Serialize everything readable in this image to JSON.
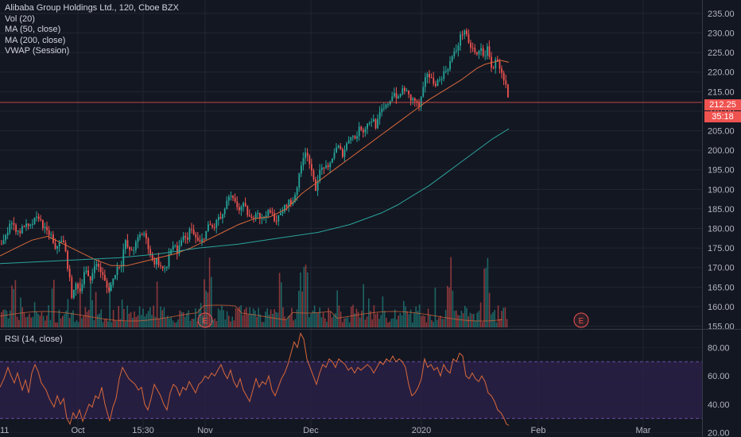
{
  "header": {
    "title": "Alibaba Group Holdings Ltd., 120, Cboe BZX",
    "indicators": [
      "Vol (20)",
      "MA (50, close)",
      "MA (200, close)",
      "VWAP (Session)"
    ]
  },
  "rsi_panel": {
    "label": "RSI (14, close)"
  },
  "price_tag": {
    "price": "212.25",
    "countdown": "35:18"
  },
  "earnings_marker": "E",
  "colors": {
    "background": "#131722",
    "grid": "#222631",
    "up": "#26a69a",
    "down": "#ef5350",
    "ma50": "#d9683a",
    "ma200": "#2aa39a",
    "rsi_line": "#d9683a",
    "rsi_band": "#2a2045",
    "rsi_band_border": "#7e57c2"
  },
  "chart_data": [
    {
      "type": "candlestick",
      "title": "Alibaba Group Holdings Ltd., 120, Cboe BZX",
      "x_ticks": [
        "11",
        "Oct",
        "15:30",
        "Nov",
        "Dec",
        "2020",
        "Feb",
        "Mar"
      ],
      "y_ticks": [
        155,
        160,
        165,
        170,
        175,
        180,
        185,
        190,
        195,
        200,
        205,
        210,
        215,
        220,
        225,
        230,
        235
      ],
      "ylim": [
        154.5,
        236
      ],
      "grid": true,
      "last_price": 212.25,
      "close_path": [
        [
          0,
          176
        ],
        [
          6,
          177.5
        ],
        [
          12,
          182
        ],
        [
          18,
          180
        ],
        [
          24,
          179
        ],
        [
          30,
          181
        ],
        [
          36,
          180
        ],
        [
          42,
          182
        ],
        [
          48,
          183
        ],
        [
          52,
          181
        ],
        [
          58,
          179
        ],
        [
          64,
          178
        ],
        [
          68,
          174
        ],
        [
          74,
          177
        ],
        [
          80,
          176
        ],
        [
          86,
          168
        ],
        [
          90,
          162
        ],
        [
          95,
          166
        ],
        [
          100,
          164
        ],
        [
          106,
          170
        ],
        [
          112,
          166
        ],
        [
          118,
          171
        ],
        [
          124,
          170
        ],
        [
          130,
          167
        ],
        [
          135,
          164
        ],
        [
          140,
          166
        ],
        [
          146,
          170
        ],
        [
          152,
          171
        ],
        [
          156,
          177
        ],
        [
          162,
          174
        ],
        [
          168,
          175
        ],
        [
          174,
          178
        ],
        [
          180,
          179
        ],
        [
          186,
          175
        ],
        [
          192,
          171
        ],
        [
          196,
          172
        ],
        [
          202,
          170
        ],
        [
          208,
          169
        ],
        [
          212,
          174
        ],
        [
          218,
          176
        ],
        [
          222,
          173
        ],
        [
          228,
          178
        ],
        [
          234,
          177
        ],
        [
          238,
          180
        ],
        [
          244,
          178
        ],
        [
          250,
          176
        ],
        [
          256,
          178
        ],
        [
          262,
          181
        ],
        [
          268,
          180
        ],
        [
          274,
          183
        ],
        [
          278,
          182
        ],
        [
          284,
          187
        ],
        [
          290,
          188
        ],
        [
          296,
          186
        ],
        [
          300,
          185
        ],
        [
          306,
          186
        ],
        [
          312,
          183
        ],
        [
          316,
          182
        ],
        [
          322,
          185
        ],
        [
          328,
          182
        ],
        [
          334,
          184
        ],
        [
          340,
          184
        ],
        [
          346,
          182
        ],
        [
          350,
          183
        ],
        [
          356,
          185
        ],
        [
          362,
          187
        ],
        [
          366,
          186
        ],
        [
          372,
          190
        ],
        [
          378,
          196
        ],
        [
          382,
          200
        ],
        [
          386,
          199
        ],
        [
          390,
          195
        ],
        [
          396,
          190
        ],
        [
          400,
          194
        ],
        [
          406,
          196
        ],
        [
          412,
          195
        ],
        [
          418,
          199
        ],
        [
          424,
          201
        ],
        [
          430,
          199
        ],
        [
          436,
          202
        ],
        [
          440,
          204
        ],
        [
          446,
          203
        ],
        [
          452,
          206
        ],
        [
          456,
          205
        ],
        [
          462,
          207
        ],
        [
          468,
          208
        ],
        [
          472,
          206
        ],
        [
          478,
          210
        ],
        [
          484,
          211
        ],
        [
          490,
          213
        ],
        [
          494,
          215
        ],
        [
          500,
          213
        ],
        [
          506,
          216
        ],
        [
          510,
          215
        ],
        [
          516,
          213
        ],
        [
          520,
          213
        ],
        [
          526,
          211
        ],
        [
          532,
          216
        ],
        [
          536,
          220
        ],
        [
          542,
          218
        ],
        [
          546,
          217
        ],
        [
          552,
          218
        ],
        [
          558,
          220
        ],
        [
          562,
          221
        ],
        [
          568,
          224
        ],
        [
          574,
          226
        ],
        [
          578,
          229
        ],
        [
          584,
          231
        ],
        [
          588,
          227
        ],
        [
          594,
          226
        ],
        [
          598,
          224
        ],
        [
          604,
          226
        ],
        [
          608,
          224
        ],
        [
          612,
          226
        ],
        [
          616,
          222
        ],
        [
          620,
          221
        ],
        [
          624,
          224
        ],
        [
          628,
          221
        ],
        [
          632,
          218
        ],
        [
          636,
          216
        ],
        [
          638,
          213
        ],
        [
          640,
          212.25
        ]
      ],
      "ma50_path": [
        [
          0,
          173
        ],
        [
          20,
          175
        ],
        [
          40,
          177
        ],
        [
          60,
          178
        ],
        [
          80,
          176
        ],
        [
          100,
          174
        ],
        [
          120,
          172
        ],
        [
          140,
          170.5
        ],
        [
          160,
          170.5
        ],
        [
          180,
          171.5
        ],
        [
          200,
          172.5
        ],
        [
          220,
          173.5
        ],
        [
          240,
          175
        ],
        [
          260,
          177
        ],
        [
          280,
          179
        ],
        [
          300,
          181
        ],
        [
          320,
          182.5
        ],
        [
          340,
          183
        ],
        [
          360,
          185
        ],
        [
          380,
          189
        ],
        [
          400,
          192
        ],
        [
          420,
          195
        ],
        [
          440,
          198
        ],
        [
          460,
          201
        ],
        [
          480,
          204
        ],
        [
          500,
          207
        ],
        [
          520,
          210
        ],
        [
          540,
          213
        ],
        [
          560,
          215.5
        ],
        [
          580,
          218
        ],
        [
          600,
          221
        ],
        [
          610,
          222
        ],
        [
          620,
          222.5
        ],
        [
          630,
          223
        ],
        [
          640,
          222.5
        ]
      ],
      "ma200_path": [
        [
          0,
          171
        ],
        [
          50,
          171.5
        ],
        [
          100,
          172
        ],
        [
          150,
          172.5
        ],
        [
          200,
          173.5
        ],
        [
          250,
          175
        ],
        [
          300,
          176
        ],
        [
          350,
          177.5
        ],
        [
          400,
          179
        ],
        [
          440,
          181
        ],
        [
          480,
          184
        ],
        [
          500,
          186
        ],
        [
          520,
          188.5
        ],
        [
          540,
          191
        ],
        [
          560,
          194
        ],
        [
          580,
          197
        ],
        [
          600,
          200
        ],
        [
          620,
          203
        ],
        [
          640,
          205.5
        ]
      ]
    },
    {
      "type": "bar",
      "title": "Vol (20)",
      "note": "volume histogram overlaid along the bottom of the price panel"
    },
    {
      "type": "line",
      "title": "RSI (14, close)",
      "y_ticks": [
        20,
        40,
        60,
        80
      ],
      "ylim": [
        18,
        92
      ],
      "band": [
        30,
        70
      ],
      "x_ticks": [
        "11",
        "Oct",
        "15:30",
        "Nov",
        "Dec",
        "2020",
        "Feb",
        "Mar"
      ],
      "rsi_path": [
        [
          0,
          52
        ],
        [
          5,
          58
        ],
        [
          10,
          66
        ],
        [
          14,
          60
        ],
        [
          18,
          55
        ],
        [
          22,
          62
        ],
        [
          28,
          50
        ],
        [
          32,
          57
        ],
        [
          36,
          48
        ],
        [
          40,
          62
        ],
        [
          44,
          68
        ],
        [
          48,
          63
        ],
        [
          52,
          55
        ],
        [
          58,
          50
        ],
        [
          62,
          44
        ],
        [
          68,
          38
        ],
        [
          72,
          46
        ],
        [
          76,
          40
        ],
        [
          80,
          44
        ],
        [
          84,
          30
        ],
        [
          88,
          26
        ],
        [
          92,
          34
        ],
        [
          96,
          30
        ],
        [
          100,
          36
        ],
        [
          104,
          28
        ],
        [
          108,
          34
        ],
        [
          112,
          40
        ],
        [
          116,
          38
        ],
        [
          120,
          46
        ],
        [
          124,
          44
        ],
        [
          128,
          52
        ],
        [
          132,
          40
        ],
        [
          136,
          32
        ],
        [
          138,
          28
        ],
        [
          142,
          38
        ],
        [
          146,
          44
        ],
        [
          150,
          58
        ],
        [
          154,
          66
        ],
        [
          158,
          62
        ],
        [
          162,
          58
        ],
        [
          166,
          56
        ],
        [
          170,
          54
        ],
        [
          174,
          50
        ],
        [
          178,
          52
        ],
        [
          182,
          40
        ],
        [
          186,
          36
        ],
        [
          190,
          44
        ],
        [
          194,
          54
        ],
        [
          198,
          50
        ],
        [
          202,
          46
        ],
        [
          206,
          40
        ],
        [
          210,
          36
        ],
        [
          214,
          48
        ],
        [
          218,
          54
        ],
        [
          222,
          52
        ],
        [
          226,
          46
        ],
        [
          230,
          52
        ],
        [
          234,
          50
        ],
        [
          238,
          56
        ],
        [
          242,
          52
        ],
        [
          246,
          48
        ],
        [
          250,
          54
        ],
        [
          254,
          56
        ],
        [
          258,
          60
        ],
        [
          262,
          58
        ],
        [
          266,
          62
        ],
        [
          270,
          60
        ],
        [
          274,
          64
        ],
        [
          278,
          68
        ],
        [
          282,
          62
        ],
        [
          286,
          58
        ],
        [
          290,
          64
        ],
        [
          294,
          56
        ],
        [
          298,
          52
        ],
        [
          302,
          58
        ],
        [
          306,
          50
        ],
        [
          310,
          46
        ],
        [
          314,
          42
        ],
        [
          318,
          50
        ],
        [
          322,
          58
        ],
        [
          326,
          52
        ],
        [
          330,
          56
        ],
        [
          334,
          54
        ],
        [
          338,
          60
        ],
        [
          342,
          50
        ],
        [
          346,
          46
        ],
        [
          350,
          52
        ],
        [
          354,
          58
        ],
        [
          358,
          62
        ],
        [
          362,
          68
        ],
        [
          366,
          76
        ],
        [
          370,
          84
        ],
        [
          374,
          80
        ],
        [
          378,
          90
        ],
        [
          382,
          86
        ],
        [
          386,
          72
        ],
        [
          390,
          66
        ],
        [
          394,
          60
        ],
        [
          398,
          54
        ],
        [
          402,
          62
        ],
        [
          406,
          68
        ],
        [
          410,
          66
        ],
        [
          414,
          72
        ],
        [
          418,
          70
        ],
        [
          422,
          66
        ],
        [
          426,
          72
        ],
        [
          430,
          70
        ],
        [
          434,
          68
        ],
        [
          438,
          64
        ],
        [
          442,
          66
        ],
        [
          446,
          62
        ],
        [
          450,
          66
        ],
        [
          454,
          64
        ],
        [
          458,
          66
        ],
        [
          462,
          68
        ],
        [
          466,
          66
        ],
        [
          470,
          62
        ],
        [
          474,
          66
        ],
        [
          478,
          70
        ],
        [
          482,
          68
        ],
        [
          486,
          72
        ],
        [
          490,
          70
        ],
        [
          494,
          74
        ],
        [
          498,
          70
        ],
        [
          502,
          72
        ],
        [
          506,
          70
        ],
        [
          510,
          66
        ],
        [
          514,
          54
        ],
        [
          518,
          46
        ],
        [
          522,
          48
        ],
        [
          526,
          52
        ],
        [
          530,
          58
        ],
        [
          534,
          72
        ],
        [
          538,
          66
        ],
        [
          542,
          68
        ],
        [
          546,
          64
        ],
        [
          550,
          66
        ],
        [
          554,
          60
        ],
        [
          558,
          68
        ],
        [
          562,
          64
        ],
        [
          566,
          62
        ],
        [
          570,
          72
        ],
        [
          574,
          70
        ],
        [
          578,
          76
        ],
        [
          582,
          74
        ],
        [
          586,
          60
        ],
        [
          590,
          58
        ],
        [
          594,
          62
        ],
        [
          598,
          58
        ],
        [
          602,
          56
        ],
        [
          606,
          60
        ],
        [
          610,
          56
        ],
        [
          614,
          48
        ],
        [
          618,
          46
        ],
        [
          622,
          42
        ],
        [
          626,
          36
        ],
        [
          630,
          34
        ],
        [
          634,
          30
        ],
        [
          637,
          26
        ],
        [
          640,
          25
        ]
      ]
    }
  ]
}
